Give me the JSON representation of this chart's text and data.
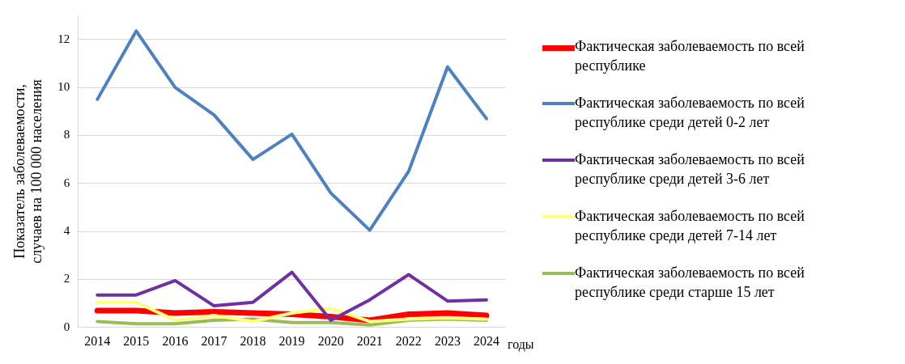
{
  "chart_data": {
    "type": "line",
    "categories": [
      "2014",
      "2015",
      "2016",
      "2017",
      "2018",
      "2019",
      "2020",
      "2021",
      "2022",
      "2023",
      "2024"
    ],
    "xlabel": "годы",
    "ylabel": "Показатель заболеваемости,\nслучаев на 100 000 населения",
    "ylim": [
      0,
      13
    ],
    "yticks": [
      0,
      2,
      4,
      6,
      8,
      10,
      12
    ],
    "grid": "y",
    "legend": "right",
    "marker": "none",
    "line_style": "solid",
    "series": [
      {
        "name": "Фактическая заболеваемость по всей республике",
        "color": "#ff0000",
        "values": [
          0.7,
          0.7,
          0.6,
          0.65,
          0.6,
          0.55,
          0.45,
          0.3,
          0.55,
          0.6,
          0.5
        ]
      },
      {
        "name": "Фактическая заболеваемость по всей республике среди детей 0-2 лет",
        "color": "#4f81bd",
        "values": [
          9.5,
          12.35,
          10.0,
          8.85,
          7.0,
          8.05,
          5.6,
          4.05,
          6.5,
          10.85,
          8.7
        ]
      },
      {
        "name": "Фактическая заболеваемость по всей республике среди детей 3-6 лет",
        "color": "#7030a0",
        "values": [
          1.35,
          1.35,
          1.95,
          0.9,
          1.05,
          2.3,
          0.3,
          1.15,
          2.2,
          1.1,
          1.15
        ]
      },
      {
        "name": "Фактическая заболеваемость по всей республике среди детей 7-14 лет",
        "color": "#ffff80",
        "values": [
          1.05,
          1.05,
          0.3,
          0.5,
          0.25,
          0.6,
          0.8,
          0.25,
          0.35,
          0.4,
          0.35
        ]
      },
      {
        "name": "Фактическая заболеваемость по всей республике среди старше 15 лет",
        "color": "#9bbb59",
        "values": [
          0.25,
          0.15,
          0.15,
          0.3,
          0.35,
          0.2,
          0.2,
          0.1,
          0.3,
          0.35,
          0.3
        ]
      }
    ]
  }
}
